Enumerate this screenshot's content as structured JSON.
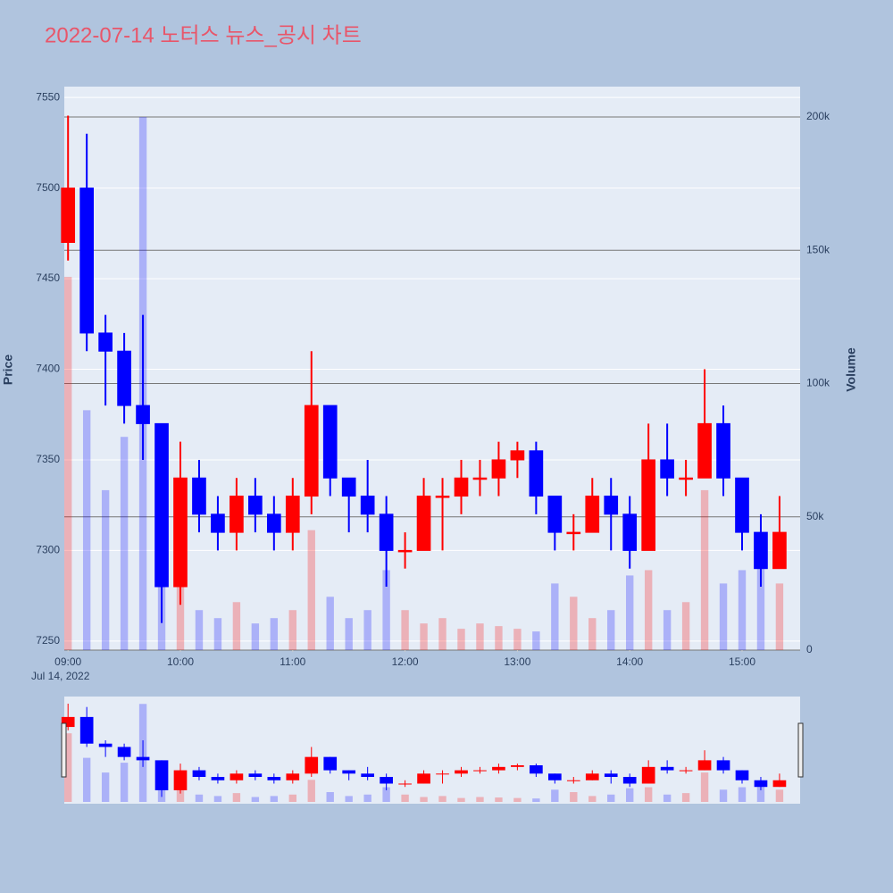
{
  "chart_data": {
    "type": "candlestick",
    "title": "2022-07-14 노터스 뉴스_공시 차트",
    "y_title": "Price",
    "y2_title": "Volume",
    "x_date_label": "Jul 14, 2022",
    "increasing_color": "#ff0000",
    "decreasing_color": "#0000ff",
    "x": [
      "2022-07-14 09:00",
      "2022-07-14 09:10",
      "2022-07-14 09:20",
      "2022-07-14 09:30",
      "2022-07-14 09:40",
      "2022-07-14 09:50",
      "2022-07-14 10:00",
      "2022-07-14 10:10",
      "2022-07-14 10:20",
      "2022-07-14 10:30",
      "2022-07-14 10:40",
      "2022-07-14 10:50",
      "2022-07-14 11:00",
      "2022-07-14 11:10",
      "2022-07-14 11:20",
      "2022-07-14 11:30",
      "2022-07-14 11:40",
      "2022-07-14 11:50",
      "2022-07-14 12:00",
      "2022-07-14 12:10",
      "2022-07-14 12:20",
      "2022-07-14 12:30",
      "2022-07-14 12:40",
      "2022-07-14 12:50",
      "2022-07-14 13:00",
      "2022-07-14 13:10",
      "2022-07-14 13:20",
      "2022-07-14 13:30",
      "2022-07-14 13:40",
      "2022-07-14 13:50",
      "2022-07-14 14:00",
      "2022-07-14 14:10",
      "2022-07-14 14:20",
      "2022-07-14 14:30",
      "2022-07-14 14:40",
      "2022-07-14 14:50",
      "2022-07-14 15:00",
      "2022-07-14 15:10",
      "2022-07-14 15:20"
    ],
    "open": [
      7470,
      7500,
      7420,
      7410,
      7380,
      7370,
      7280,
      7340,
      7320,
      7310,
      7330,
      7320,
      7310,
      7330,
      7380,
      7340,
      7330,
      7320,
      7300,
      7300,
      7330,
      7330,
      7340,
      7340,
      7350,
      7355,
      7330,
      7310,
      7310,
      7330,
      7320,
      7300,
      7350,
      7340,
      7340,
      7370,
      7340,
      7310,
      7290
    ],
    "high": [
      7540,
      7530,
      7430,
      7420,
      7430,
      7370,
      7360,
      7350,
      7330,
      7340,
      7340,
      7330,
      7340,
      7410,
      7380,
      7340,
      7350,
      7330,
      7310,
      7340,
      7340,
      7350,
      7350,
      7360,
      7360,
      7360,
      7330,
      7320,
      7340,
      7340,
      7330,
      7370,
      7370,
      7350,
      7400,
      7380,
      7340,
      7320,
      7330
    ],
    "low": [
      7460,
      7410,
      7380,
      7370,
      7350,
      7260,
      7270,
      7310,
      7300,
      7300,
      7310,
      7300,
      7300,
      7320,
      7330,
      7310,
      7310,
      7280,
      7290,
      7300,
      7300,
      7320,
      7330,
      7330,
      7340,
      7320,
      7300,
      7300,
      7310,
      7300,
      7290,
      7300,
      7330,
      7330,
      7340,
      7330,
      7300,
      7280,
      7290
    ],
    "close": [
      7500,
      7420,
      7410,
      7380,
      7370,
      7280,
      7340,
      7320,
      7310,
      7330,
      7320,
      7310,
      7330,
      7380,
      7340,
      7330,
      7320,
      7300,
      7300,
      7330,
      7330,
      7340,
      7340,
      7350,
      7355,
      7330,
      7310,
      7310,
      7330,
      7320,
      7300,
      7350,
      7340,
      7340,
      7370,
      7340,
      7310,
      7290,
      7310
    ],
    "volume": [
      140000,
      90000,
      60000,
      80000,
      200000,
      40000,
      25000,
      15000,
      12000,
      18000,
      10000,
      12000,
      15000,
      45000,
      20000,
      12000,
      15000,
      30000,
      15000,
      10000,
      12000,
      8000,
      10000,
      9000,
      8000,
      7000,
      25000,
      20000,
      12000,
      15000,
      28000,
      30000,
      15000,
      18000,
      60000,
      25000,
      30000,
      35000,
      25000
    ],
    "xlim": [
      "2022-07-14 08:58",
      "2022-07-14 15:31"
    ],
    "xticks": [
      {
        "value": "2022-07-14 09:00",
        "label": "09:00"
      },
      {
        "value": "2022-07-14 10:00",
        "label": "10:00"
      },
      {
        "value": "2022-07-14 11:00",
        "label": "11:00"
      },
      {
        "value": "2022-07-14 12:00",
        "label": "12:00"
      },
      {
        "value": "2022-07-14 13:00",
        "label": "13:00"
      },
      {
        "value": "2022-07-14 14:00",
        "label": "14:00"
      },
      {
        "value": "2022-07-14 15:00",
        "label": "15:00"
      }
    ],
    "ylim": [
      7245,
      7556
    ],
    "yticks": [
      7250,
      7300,
      7350,
      7400,
      7450,
      7500,
      7550
    ],
    "y2lim": [
      0,
      211400
    ],
    "y2ticks": [
      0,
      {
        "value": 50000,
        "label": "50k"
      },
      {
        "value": 100000,
        "label": "100k"
      },
      {
        "value": 150000,
        "label": "150k"
      },
      {
        "value": 200000,
        "label": "200k"
      }
    ],
    "grid": true,
    "range_slider": true
  }
}
